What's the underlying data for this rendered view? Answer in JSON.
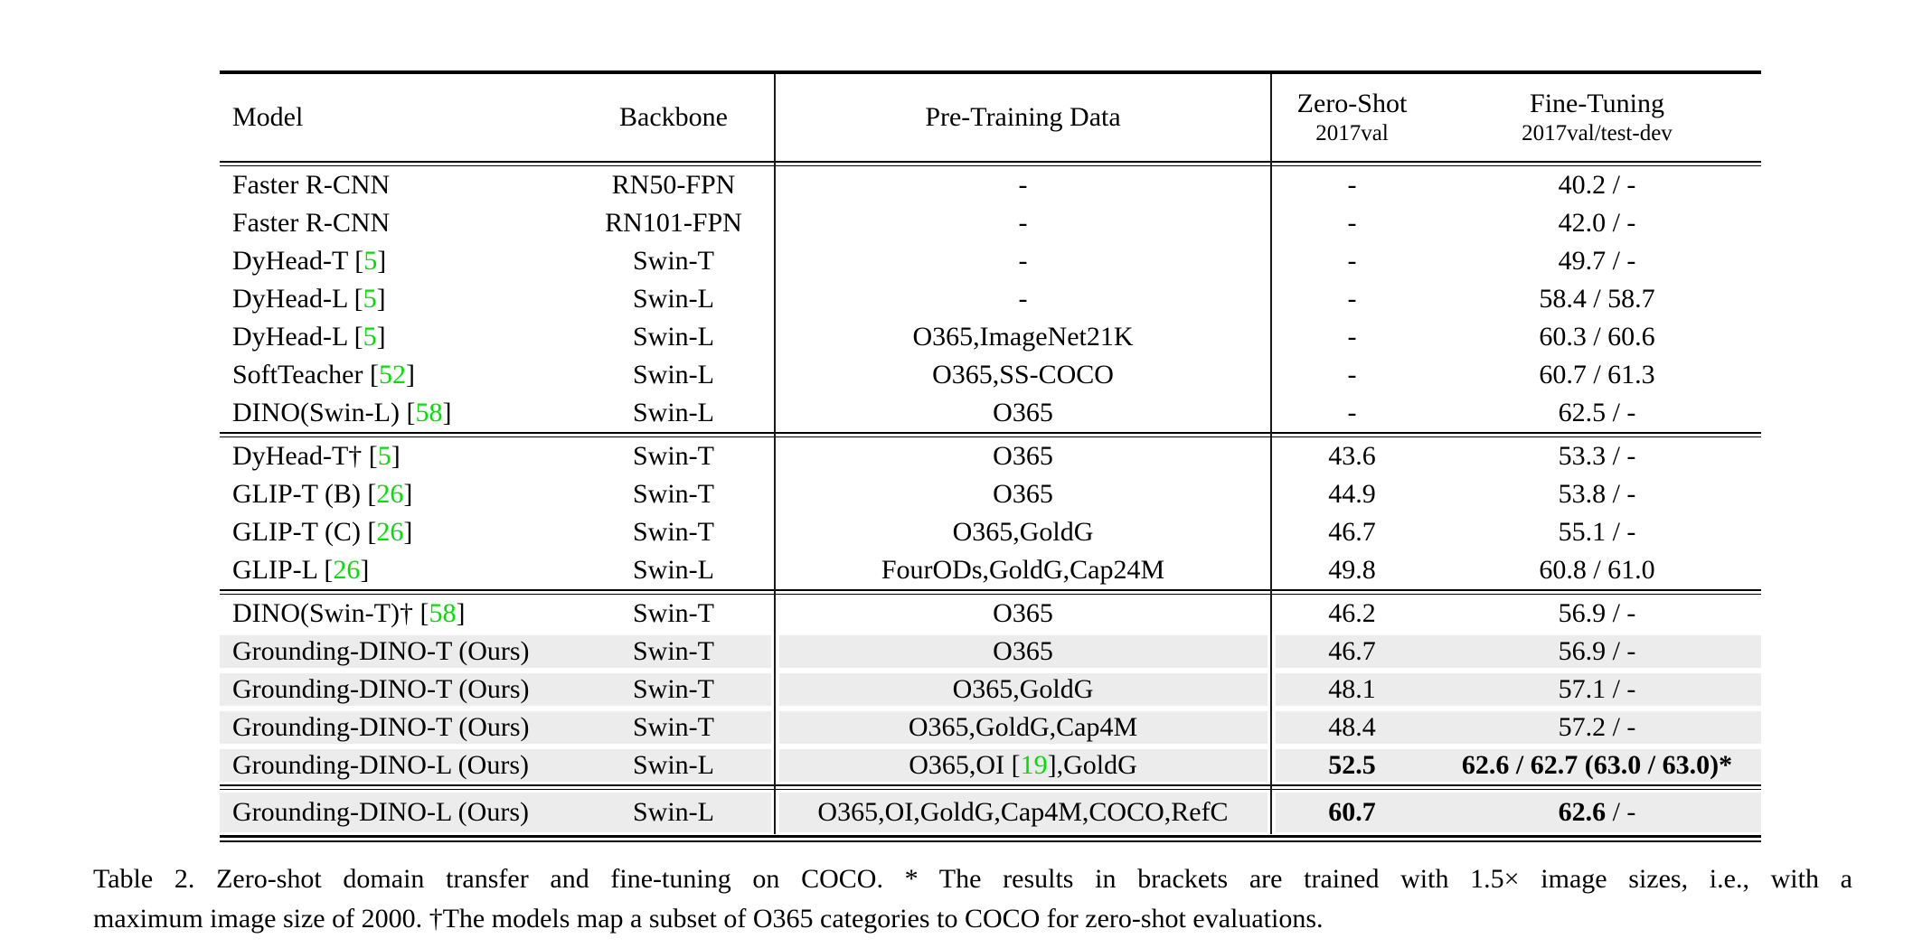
{
  "colors": {
    "citation_green": "#00e000",
    "highlight_gray": "#ececec",
    "rule_black": "#000000"
  },
  "table": {
    "header": {
      "model": "Model",
      "backbone": "Backbone",
      "pretraining": "Pre-Training Data",
      "zeroshot_line1": "Zero-Shot",
      "zeroshot_line2": "2017val",
      "finetuning_line1": "Fine-Tuning",
      "finetuning_line2": "2017val/test-dev"
    },
    "groups": [
      {
        "rows": [
          {
            "highlight": false,
            "model": [
              [
                "Faster R-CNN",
                "k"
              ]
            ],
            "backbone": "RN50-FPN",
            "pretrain": [
              [
                "-",
                "k"
              ]
            ],
            "zeroshot": [
              [
                "-",
                "k"
              ]
            ],
            "finetune": [
              [
                "40.2 / -",
                "k"
              ]
            ]
          },
          {
            "highlight": false,
            "model": [
              [
                "Faster R-CNN",
                "k"
              ]
            ],
            "backbone": "RN101-FPN",
            "pretrain": [
              [
                "-",
                "k"
              ]
            ],
            "zeroshot": [
              [
                "-",
                "k"
              ]
            ],
            "finetune": [
              [
                "42.0 / -",
                "k"
              ]
            ]
          },
          {
            "highlight": false,
            "model": [
              [
                "DyHead-T [",
                "k"
              ],
              [
                "5",
                "g"
              ],
              [
                "]",
                "k"
              ]
            ],
            "backbone": "Swin-T",
            "pretrain": [
              [
                "-",
                "k"
              ]
            ],
            "zeroshot": [
              [
                "-",
                "k"
              ]
            ],
            "finetune": [
              [
                "49.7 / -",
                "k"
              ]
            ]
          },
          {
            "highlight": false,
            "model": [
              [
                "DyHead-L [",
                "k"
              ],
              [
                "5",
                "g"
              ],
              [
                "]",
                "k"
              ]
            ],
            "backbone": "Swin-L",
            "pretrain": [
              [
                "-",
                "k"
              ]
            ],
            "zeroshot": [
              [
                "-",
                "k"
              ]
            ],
            "finetune": [
              [
                "58.4 / 58.7",
                "k"
              ]
            ]
          },
          {
            "highlight": false,
            "model": [
              [
                "DyHead-L [",
                "k"
              ],
              [
                "5",
                "g"
              ],
              [
                "]",
                "k"
              ]
            ],
            "backbone": "Swin-L",
            "pretrain": [
              [
                "O365,ImageNet21K",
                "k"
              ]
            ],
            "zeroshot": [
              [
                "-",
                "k"
              ]
            ],
            "finetune": [
              [
                "60.3 / 60.6",
                "k"
              ]
            ]
          },
          {
            "highlight": false,
            "model": [
              [
                "SoftTeacher [",
                "k"
              ],
              [
                "52",
                "g"
              ],
              [
                "]",
                "k"
              ]
            ],
            "backbone": "Swin-L",
            "pretrain": [
              [
                "O365,SS-COCO",
                "k"
              ]
            ],
            "zeroshot": [
              [
                "-",
                "k"
              ]
            ],
            "finetune": [
              [
                "60.7 / 61.3",
                "k"
              ]
            ]
          },
          {
            "highlight": false,
            "model": [
              [
                "DINO(Swin-L) [",
                "k"
              ],
              [
                "58",
                "g"
              ],
              [
                "]",
                "k"
              ]
            ],
            "backbone": "Swin-L",
            "pretrain": [
              [
                "O365",
                "k"
              ]
            ],
            "zeroshot": [
              [
                "-",
                "k"
              ]
            ],
            "finetune": [
              [
                "62.5 / -",
                "k"
              ]
            ]
          }
        ]
      },
      {
        "rows": [
          {
            "highlight": false,
            "model": [
              [
                "DyHead-T† [",
                "k"
              ],
              [
                "5",
                "g"
              ],
              [
                "]",
                "k"
              ]
            ],
            "backbone": "Swin-T",
            "pretrain": [
              [
                "O365",
                "k"
              ]
            ],
            "zeroshot": [
              [
                "43.6",
                "k"
              ]
            ],
            "finetune": [
              [
                "53.3 / -",
                "k"
              ]
            ]
          },
          {
            "highlight": false,
            "model": [
              [
                "GLIP-T (B) [",
                "k"
              ],
              [
                "26",
                "g"
              ],
              [
                "]",
                "k"
              ]
            ],
            "backbone": "Swin-T",
            "pretrain": [
              [
                "O365",
                "k"
              ]
            ],
            "zeroshot": [
              [
                "44.9",
                "k"
              ]
            ],
            "finetune": [
              [
                "53.8 / -",
                "k"
              ]
            ]
          },
          {
            "highlight": false,
            "model": [
              [
                "GLIP-T (C) [",
                "k"
              ],
              [
                "26",
                "g"
              ],
              [
                "]",
                "k"
              ]
            ],
            "backbone": "Swin-T",
            "pretrain": [
              [
                "O365,GoldG",
                "k"
              ]
            ],
            "zeroshot": [
              [
                "46.7",
                "k"
              ]
            ],
            "finetune": [
              [
                "55.1 / -",
                "k"
              ]
            ]
          },
          {
            "highlight": false,
            "model": [
              [
                "GLIP-L [",
                "k"
              ],
              [
                "26",
                "g"
              ],
              [
                "]",
                "k"
              ]
            ],
            "backbone": "Swin-L",
            "pretrain": [
              [
                "FourODs,GoldG,Cap24M",
                "k"
              ]
            ],
            "zeroshot": [
              [
                "49.8",
                "k"
              ]
            ],
            "finetune": [
              [
                "60.8 / 61.0",
                "k"
              ]
            ]
          }
        ]
      },
      {
        "rows": [
          {
            "highlight": false,
            "model": [
              [
                "DINO(Swin-T)† [",
                "k"
              ],
              [
                "58",
                "g"
              ],
              [
                "]",
                "k"
              ]
            ],
            "backbone": "Swin-T",
            "pretrain": [
              [
                "O365",
                "k"
              ]
            ],
            "zeroshot": [
              [
                "46.2",
                "k"
              ]
            ],
            "finetune": [
              [
                "56.9 / -",
                "k"
              ]
            ]
          },
          {
            "highlight": true,
            "model": [
              [
                "Grounding-DINO-T (Ours)",
                "k"
              ]
            ],
            "backbone": "Swin-T",
            "pretrain": [
              [
                "O365",
                "k"
              ]
            ],
            "zeroshot": [
              [
                "46.7",
                "k"
              ]
            ],
            "finetune": [
              [
                "56.9 / -",
                "k"
              ]
            ]
          },
          {
            "highlight": true,
            "model": [
              [
                "Grounding-DINO-T (Ours)",
                "k"
              ]
            ],
            "backbone": "Swin-T",
            "pretrain": [
              [
                "O365,GoldG",
                "k"
              ]
            ],
            "zeroshot": [
              [
                "48.1",
                "k"
              ]
            ],
            "finetune": [
              [
                "57.1 / -",
                "k"
              ]
            ]
          },
          {
            "highlight": true,
            "model": [
              [
                "Grounding-DINO-T (Ours)",
                "k"
              ]
            ],
            "backbone": "Swin-T",
            "pretrain": [
              [
                "O365,GoldG,Cap4M",
                "k"
              ]
            ],
            "zeroshot": [
              [
                "48.4",
                "k"
              ]
            ],
            "finetune": [
              [
                "57.2 / -",
                "k"
              ]
            ]
          },
          {
            "highlight": true,
            "model": [
              [
                "Grounding-DINO-L (Ours)",
                "k"
              ]
            ],
            "backbone": "Swin-L",
            "pretrain": [
              [
                "O365,OI [",
                "k"
              ],
              [
                "19",
                "g"
              ],
              [
                "],GoldG",
                "k"
              ]
            ],
            "zeroshot": [
              [
                "52.5",
                "b"
              ]
            ],
            "finetune": [
              [
                "62.6 / 62.7 (63.0 / 63.0)*",
                "b"
              ]
            ]
          }
        ]
      },
      {
        "rows": [
          {
            "highlight": true,
            "tall": true,
            "model": [
              [
                "Grounding-DINO-L (Ours)",
                "k"
              ]
            ],
            "backbone": "Swin-L",
            "pretrain": [
              [
                "O365,OI,GoldG,Cap4M,COCO,RefC",
                "k"
              ]
            ],
            "zeroshot": [
              [
                "60.7",
                "b"
              ]
            ],
            "finetune": [
              [
                "62.6",
                "b"
              ],
              [
                " / -",
                "k"
              ]
            ]
          }
        ]
      }
    ]
  },
  "caption": {
    "line1": "Table 2. Zero-shot domain transfer and fine-tuning on COCO. * The results in brackets are trained with 1.5× image sizes, i.e., with a",
    "line2": "maximum image size of 2000. †The models map a subset of O365 categories to COCO for zero-shot evaluations."
  }
}
